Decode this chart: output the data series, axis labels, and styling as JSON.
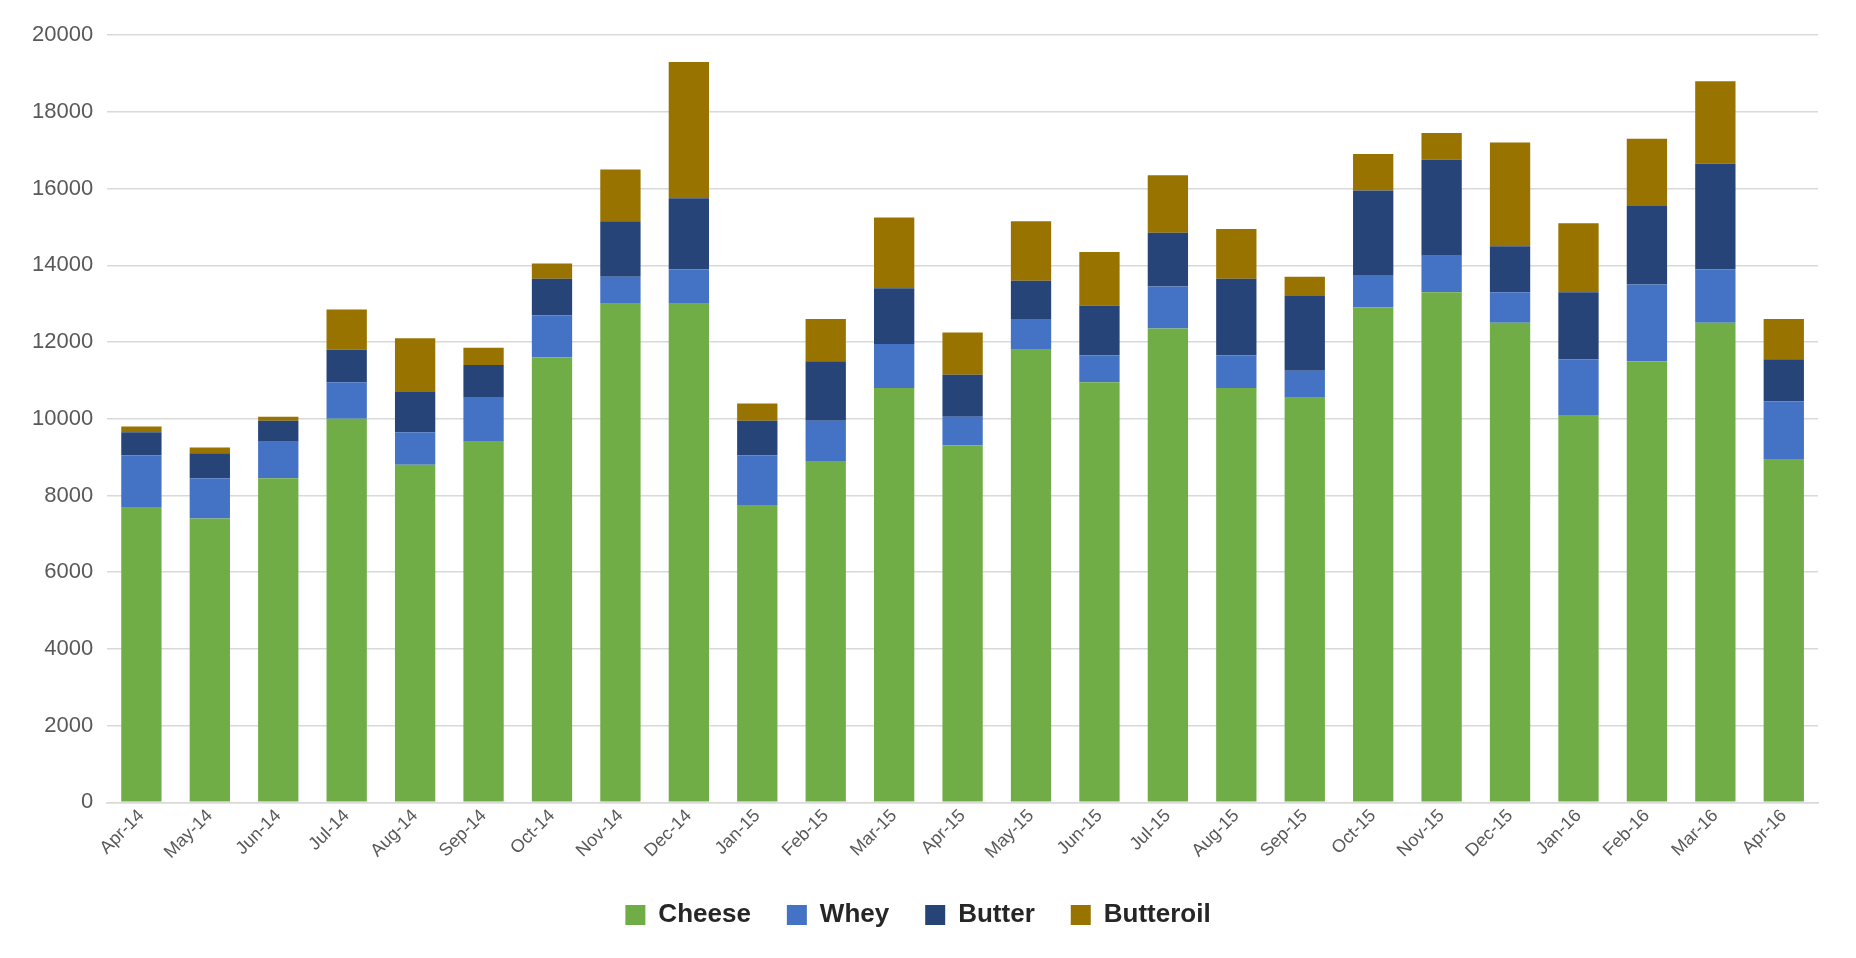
{
  "chart_data": {
    "type": "bar",
    "stacked": true,
    "categories": [
      "Apr-14",
      "May-14",
      "Jun-14",
      "Jul-14",
      "Aug-14",
      "Sep-14",
      "Oct-14",
      "Nov-14",
      "Dec-14",
      "Jan-15",
      "Feb-15",
      "Mar-15",
      "Apr-15",
      "May-15",
      "Jun-15",
      "Jul-15",
      "Aug-15",
      "Sep-15",
      "Oct-15",
      "Nov-15",
      "Dec-15",
      "Jan-16",
      "Feb-16",
      "Mar-16",
      "Apr-16"
    ],
    "series": [
      {
        "name": "Cheese",
        "color": "#70ad47",
        "values": [
          7700,
          7400,
          8450,
          10000,
          8800,
          9400,
          11600,
          13000,
          13000,
          7750,
          8900,
          10800,
          9300,
          11800,
          10950,
          12350,
          10800,
          10550,
          12900,
          13300,
          12500,
          10100,
          11500,
          12500,
          8950
        ]
      },
      {
        "name": "Whey",
        "color": "#4472c4",
        "values": [
          1350,
          1050,
          950,
          950,
          850,
          1150,
          1100,
          700,
          900,
          1300,
          1050,
          1150,
          750,
          800,
          700,
          1100,
          850,
          700,
          850,
          950,
          800,
          1450,
          2000,
          1400,
          1500
        ]
      },
      {
        "name": "Butter",
        "color": "#264478",
        "values": [
          600,
          650,
          550,
          850,
          1050,
          850,
          950,
          1450,
          1850,
          900,
          1550,
          1450,
          1100,
          1000,
          1300,
          1400,
          2000,
          1950,
          2200,
          2500,
          1200,
          1750,
          2050,
          2750,
          1100
        ]
      },
      {
        "name": "Butteroil",
        "color": "#997300",
        "values": [
          150,
          150,
          100,
          1050,
          1400,
          450,
          400,
          1350,
          3550,
          450,
          1100,
          1850,
          1100,
          1550,
          1400,
          1500,
          1300,
          500,
          950,
          700,
          2700,
          1800,
          1750,
          2150,
          1050
        ]
      }
    ],
    "ylim": [
      0,
      20000
    ],
    "yticks": [
      0,
      2000,
      4000,
      6000,
      8000,
      10000,
      12000,
      14000,
      16000,
      18000,
      20000
    ],
    "grid": "y",
    "legend": "bottom"
  }
}
